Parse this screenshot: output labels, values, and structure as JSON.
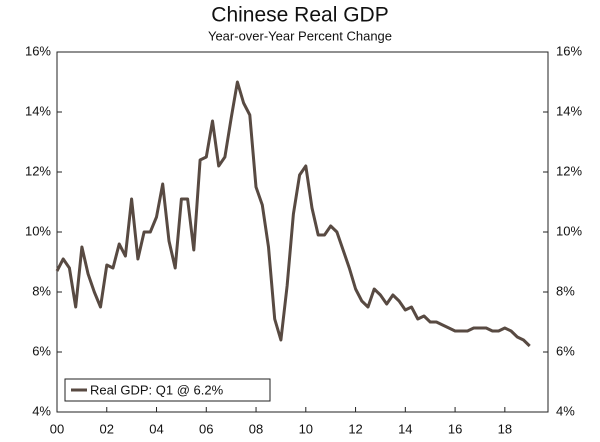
{
  "chart_data": {
    "type": "line",
    "title": "Chinese Real GDP",
    "subtitle": "Year-over-Year Percent Change",
    "categories": [
      "00",
      null,
      null,
      null,
      null,
      null,
      null,
      null,
      "02",
      null,
      null,
      null,
      null,
      null,
      null,
      null,
      "04",
      null,
      null,
      null,
      null,
      null,
      null,
      null,
      "06",
      null,
      null,
      null,
      null,
      null,
      null,
      null,
      "08",
      null,
      null,
      null,
      null,
      null,
      null,
      null,
      "10",
      null,
      null,
      null,
      null,
      null,
      null,
      null,
      "12",
      null,
      null,
      null,
      null,
      null,
      null,
      null,
      "14",
      null,
      null,
      null,
      null,
      null,
      null,
      null,
      "16",
      null,
      null,
      null,
      null,
      null,
      null,
      null,
      "18",
      null,
      null,
      null,
      null
    ],
    "series": [
      {
        "name": "Real GDP: Q1 @ 6.2%",
        "color": "#584a42",
        "values": [
          8.7,
          9.1,
          8.8,
          7.5,
          9.5,
          8.6,
          8.0,
          7.5,
          8.9,
          8.8,
          9.6,
          9.2,
          11.1,
          9.1,
          10.0,
          10.0,
          10.5,
          11.6,
          9.7,
          8.8,
          11.1,
          11.1,
          9.4,
          12.4,
          12.5,
          13.7,
          12.2,
          12.5,
          13.8,
          15.0,
          14.3,
          13.9,
          11.5,
          10.9,
          9.5,
          7.1,
          6.4,
          8.2,
          10.6,
          11.9,
          12.2,
          10.8,
          9.9,
          9.9,
          10.2,
          10.0,
          9.4,
          8.8,
          8.1,
          7.7,
          7.5,
          8.1,
          7.9,
          7.6,
          7.9,
          7.7,
          7.4,
          7.5,
          7.1,
          7.2,
          7.0,
          7.0,
          6.9,
          6.8,
          6.7,
          6.7,
          6.7,
          6.8,
          6.8,
          6.8,
          6.7,
          6.7,
          6.8,
          6.7,
          6.5,
          6.4,
          6.2
        ]
      }
    ],
    "ylim": [
      4,
      16
    ],
    "yticks": [
      {
        "value": 4,
        "label": "4%"
      },
      {
        "value": 6,
        "label": "6%"
      },
      {
        "value": 8,
        "label": "8%"
      },
      {
        "value": 10,
        "label": "10%"
      },
      {
        "value": 12,
        "label": "12%"
      },
      {
        "value": 14,
        "label": "14%"
      },
      {
        "value": 16,
        "label": "16%"
      }
    ],
    "y2lim": [
      4,
      16
    ],
    "y2ticks": [
      {
        "value": 4,
        "label": "4%"
      },
      {
        "value": 6,
        "label": "6%"
      },
      {
        "value": 8,
        "label": "8%"
      },
      {
        "value": 10,
        "label": "10%"
      },
      {
        "value": 12,
        "label": "12%"
      },
      {
        "value": 14,
        "label": "14%"
      },
      {
        "value": 16,
        "label": "16%"
      }
    ],
    "grid": false,
    "legend": "lower left"
  }
}
